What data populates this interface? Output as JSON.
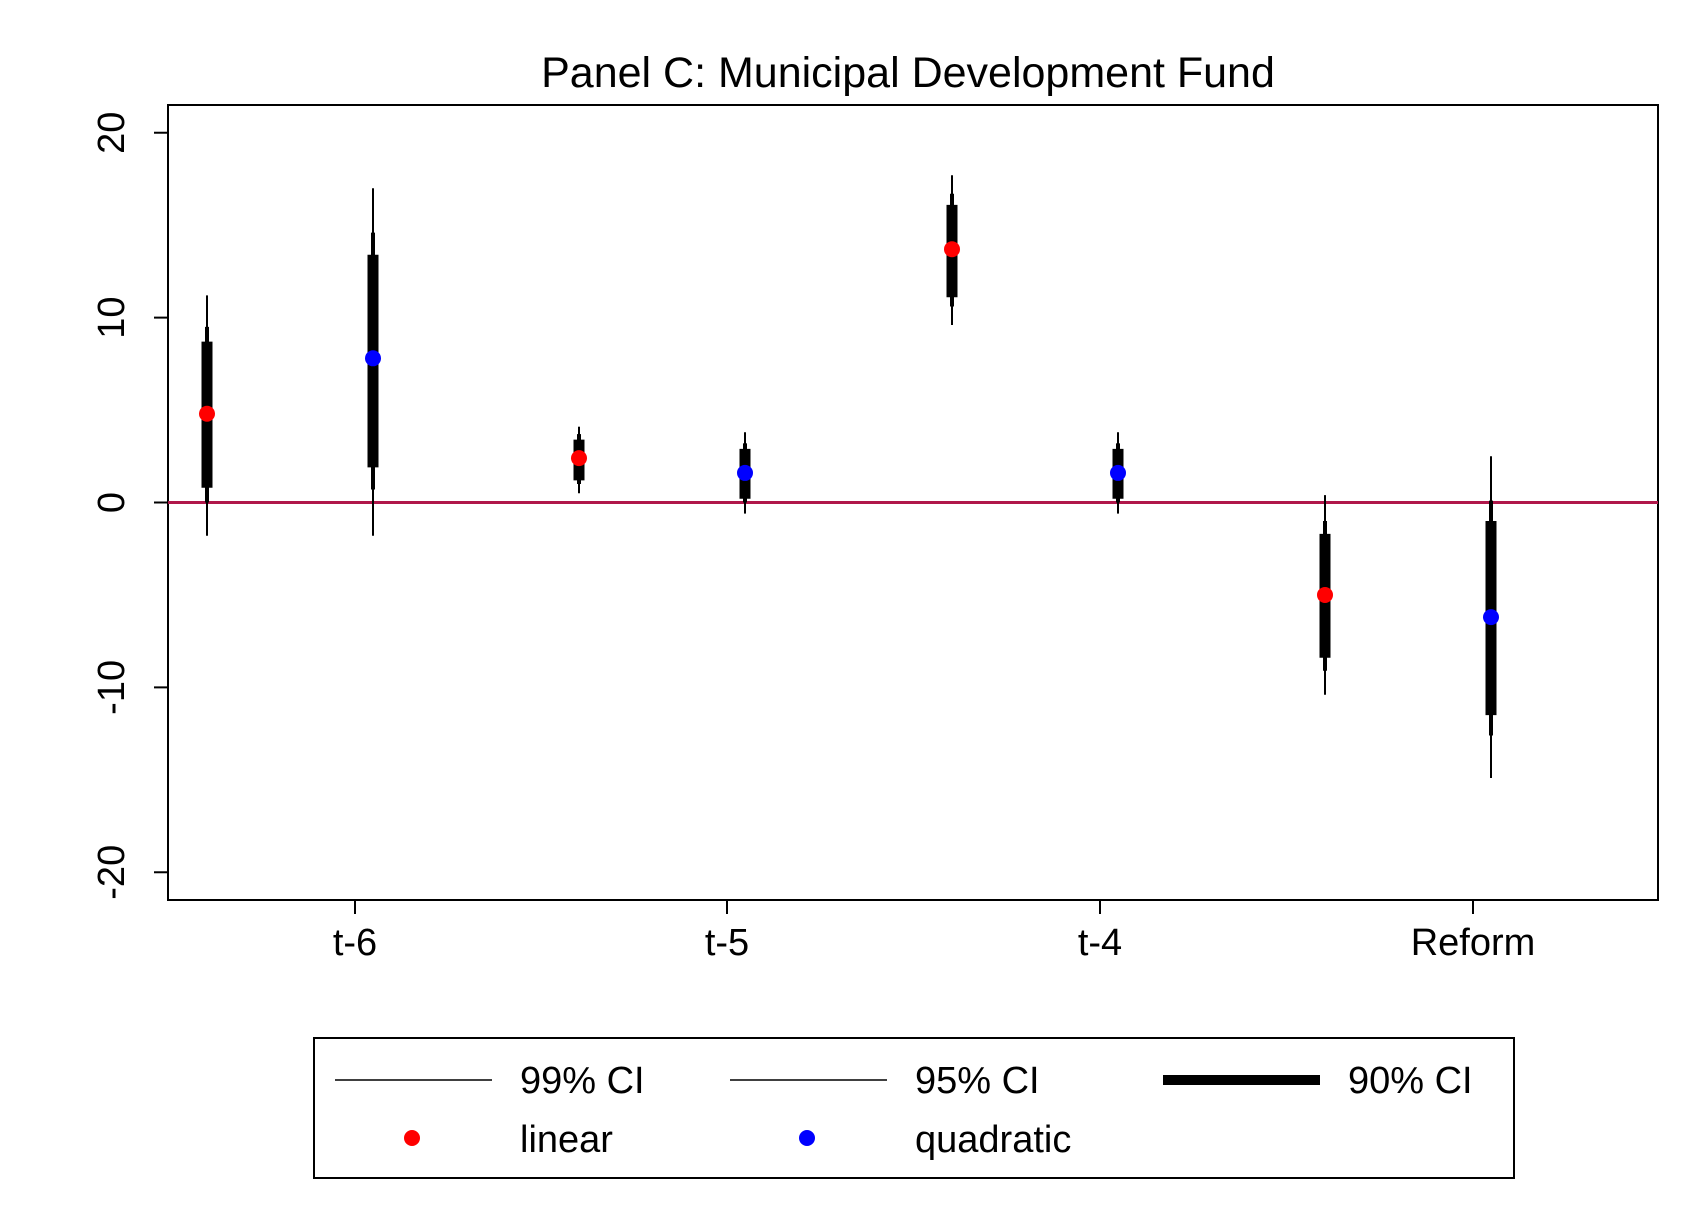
{
  "chart_data": {
    "type": "scatter",
    "title": "Panel C: Municipal Development Fund",
    "xlabel": "",
    "ylabel": "",
    "categories": [
      "t-6",
      "t-5",
      "t-4",
      "Reform"
    ],
    "yticks": [
      -20,
      -10,
      0,
      10,
      20
    ],
    "ylim": [
      -21.5,
      21.5
    ],
    "reference_line": {
      "y": 0,
      "color": "#b0174a"
    },
    "series": [
      {
        "name": "linear",
        "color": "#ff0000",
        "points": [
          {
            "category": "t-6",
            "estimate": 4.8,
            "ci90": [
              0.8,
              8.7
            ],
            "ci95": [
              0.0,
              9.5
            ],
            "ci99": [
              -1.8,
              11.2
            ]
          },
          {
            "category": "t-5",
            "estimate": 2.4,
            "ci90": [
              1.2,
              3.4
            ],
            "ci95": [
              1.0,
              3.7
            ],
            "ci99": [
              0.5,
              4.1
            ]
          },
          {
            "category": "t-4",
            "estimate": 13.7,
            "ci90": [
              11.1,
              16.1
            ],
            "ci95": [
              10.6,
              16.7
            ],
            "ci99": [
              9.6,
              17.7
            ]
          },
          {
            "category": "Reform",
            "estimate": -5.0,
            "ci90": [
              -8.4,
              -1.7
            ],
            "ci95": [
              -9.1,
              -1.0
            ],
            "ci99": [
              -10.4,
              0.4
            ]
          }
        ]
      },
      {
        "name": "quadratic",
        "color": "#0000ff",
        "points": [
          {
            "category": "t-6",
            "estimate": 7.8,
            "ci90": [
              1.9,
              13.4
            ],
            "ci95": [
              0.7,
              14.6
            ],
            "ci99": [
              -1.8,
              17.0
            ]
          },
          {
            "category": "t-5",
            "estimate": 1.6,
            "ci90": [
              0.2,
              2.9
            ],
            "ci95": [
              0.0,
              3.2
            ],
            "ci99": [
              -0.6,
              3.8
            ]
          },
          {
            "category": "t-4",
            "estimate": 1.6,
            "ci90": [
              0.2,
              2.9
            ],
            "ci95": [
              0.0,
              3.2
            ],
            "ci99": [
              -0.6,
              3.8
            ]
          },
          {
            "category": "Reform",
            "estimate": -6.2,
            "ci90": [
              -11.5,
              -1.0
            ],
            "ci95": [
              -12.6,
              0.1
            ],
            "ci99": [
              -14.9,
              2.5
            ]
          }
        ]
      }
    ],
    "legend": {
      "position": "bottom",
      "entries": [
        {
          "label": "99% CI",
          "kind": "line",
          "weight": "thin"
        },
        {
          "label": "95% CI",
          "kind": "line",
          "weight": "thin"
        },
        {
          "label": "90% CI",
          "kind": "line",
          "weight": "thick"
        },
        {
          "label": "linear",
          "kind": "marker",
          "color": "#ff0000"
        },
        {
          "label": "quadratic",
          "kind": "marker",
          "color": "#0000ff"
        }
      ]
    }
  }
}
